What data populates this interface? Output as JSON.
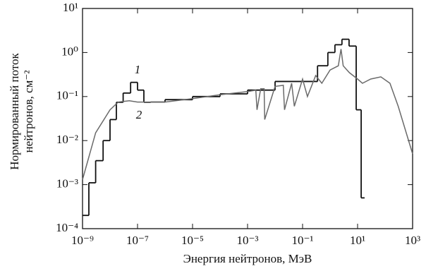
{
  "chart_data": {
    "type": "line",
    "xlabel": "Энергия нейтронов, МэВ",
    "ylabel": [
      "Нормированный поток",
      "нейтронов, см⁻²"
    ],
    "xscale": "log",
    "yscale": "log",
    "xlim": [
      1e-09,
      1000
    ],
    "ylim": [
      0.0001,
      10
    ],
    "xticks": [
      {
        "value": 1e-09,
        "label": "10⁻⁹"
      },
      {
        "value": 1e-07,
        "label": "10⁻⁷"
      },
      {
        "value": 1e-05,
        "label": "10⁻⁵"
      },
      {
        "value": 0.001,
        "label": "10⁻³"
      },
      {
        "value": 0.1,
        "label": "10⁻¹"
      },
      {
        "value": 10,
        "label": "10¹"
      },
      {
        "value": 1000,
        "label": "10³"
      }
    ],
    "yticks": [
      {
        "value": 0.0001,
        "label": "10⁻⁴"
      },
      {
        "value": 0.001,
        "label": "10⁻³"
      },
      {
        "value": 0.01,
        "label": "10⁻²"
      },
      {
        "value": 0.1,
        "label": "10⁻¹"
      },
      {
        "value": 1,
        "label": "10⁰"
      },
      {
        "value": 10,
        "label": "10¹"
      }
    ],
    "series": [
      {
        "name": "1",
        "color": "#111111",
        "bins": [
          1e-09,
          1.7e-09,
          3e-09,
          5.6e-09,
          1e-08,
          1.7e-08,
          3e-08,
          5.6e-08,
          1e-07,
          1.7e-07,
          3e-07,
          1e-06,
          1e-05,
          0.0001,
          0.001,
          0.01,
          0.35,
          0.83,
          1.5,
          2.7,
          4.9,
          8.9,
          13.5,
          18
        ],
        "values": [
          0.0002,
          0.0011,
          0.0035,
          0.01,
          0.03,
          0.074,
          0.12,
          0.21,
          0.14,
          0.074,
          0.075,
          0.085,
          0.1,
          0.115,
          0.14,
          0.22,
          0.5,
          1.0,
          1.5,
          2.0,
          1.4,
          0.05,
          0.0005
        ]
      },
      {
        "name": "2",
        "color": "#6a6a6a",
        "x": [
          1e-09,
          3e-09,
          1e-08,
          2e-08,
          5e-08,
          1e-07,
          1e-06,
          1e-05,
          0.0001,
          0.001,
          0.002,
          0.0022,
          0.003,
          0.004,
          0.0042,
          0.01,
          0.02,
          0.022,
          0.04,
          0.05,
          0.1,
          0.15,
          0.3,
          0.5,
          1,
          2,
          2.5,
          3,
          5,
          10,
          15,
          30,
          70,
          150,
          300,
          1000
        ],
        "values": [
          0.0013,
          0.015,
          0.05,
          0.075,
          0.08,
          0.075,
          0.075,
          0.09,
          0.11,
          0.13,
          0.14,
          0.05,
          0.15,
          0.15,
          0.03,
          0.17,
          0.18,
          0.05,
          0.2,
          0.06,
          0.25,
          0.1,
          0.3,
          0.2,
          0.4,
          0.5,
          1.2,
          0.5,
          0.35,
          0.25,
          0.2,
          0.25,
          0.28,
          0.2,
          0.06,
          0.005
        ]
      }
    ],
    "annotations": [
      "1",
      "2"
    ]
  }
}
